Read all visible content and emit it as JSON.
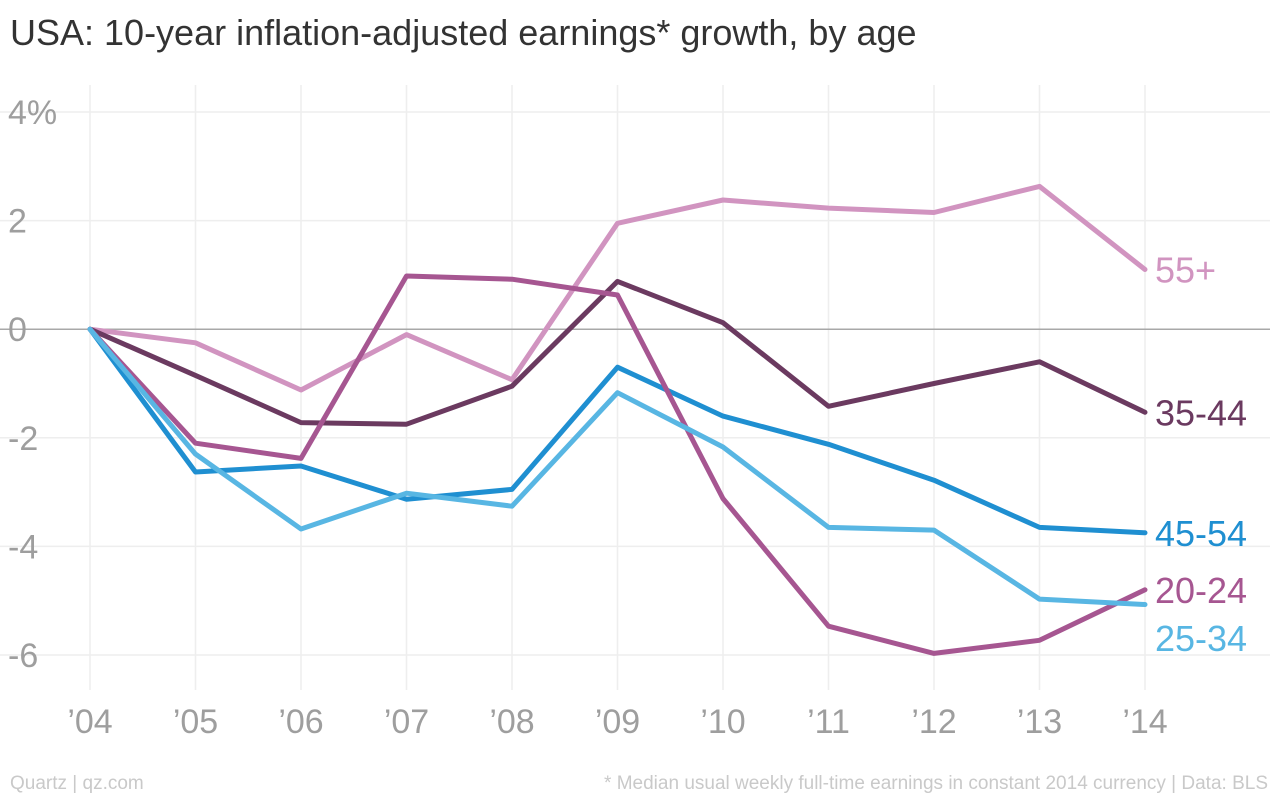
{
  "title": "USA: 10-year inflation-adjusted earnings* growth, by age",
  "footer": {
    "source_left": "Quartz | qz.com",
    "note_right": "* Median usual weekly full-time earnings in constant 2014 currency | Data: BLS"
  },
  "chart_data": {
    "type": "line",
    "title": "USA: 10-year inflation-adjusted earnings* growth, by age",
    "x": [
      "’04",
      "’05",
      "’06",
      "’07",
      "’08",
      "’09",
      "’10",
      "’11",
      "’12",
      "’13",
      "’14"
    ],
    "y_ticks": [
      {
        "value": 4,
        "label": "4%"
      },
      {
        "value": 2,
        "label": "2"
      },
      {
        "value": 0,
        "label": "0"
      },
      {
        "value": -2,
        "label": "-2"
      },
      {
        "value": -4,
        "label": "-4"
      },
      {
        "value": -6,
        "label": "-6"
      }
    ],
    "ylim": [
      -6.5,
      4.2
    ],
    "grid": true,
    "legend": "inline labels at line ends",
    "series": [
      {
        "name": "55+",
        "color": "#d194c0",
        "values": [
          0,
          -0.25,
          -1.12,
          -0.1,
          -0.93,
          1.95,
          2.38,
          2.23,
          2.15,
          2.63,
          1.1
        ]
      },
      {
        "name": "35-44",
        "color": "#6b3a60",
        "values": [
          0,
          -0.85,
          -1.72,
          -1.75,
          -1.05,
          0.88,
          0.12,
          -1.42,
          -1.0,
          -0.6,
          -1.53
        ]
      },
      {
        "name": "45-54",
        "color": "#1f8fd1",
        "values": [
          0,
          -2.63,
          -2.52,
          -3.13,
          -2.95,
          -0.7,
          -1.6,
          -2.12,
          -2.78,
          -3.65,
          -3.75
        ]
      },
      {
        "name": "20-24",
        "color": "#a65691",
        "values": [
          0,
          -2.1,
          -2.38,
          0.98,
          0.92,
          0.63,
          -3.12,
          -5.47,
          -5.97,
          -5.73,
          -4.8
        ]
      },
      {
        "name": "25-34",
        "color": "#58b6e3",
        "values": [
          0,
          -2.3,
          -3.68,
          -3.02,
          -3.26,
          -1.17,
          -2.17,
          -3.65,
          -3.7,
          -4.97,
          -5.07
        ]
      }
    ]
  }
}
